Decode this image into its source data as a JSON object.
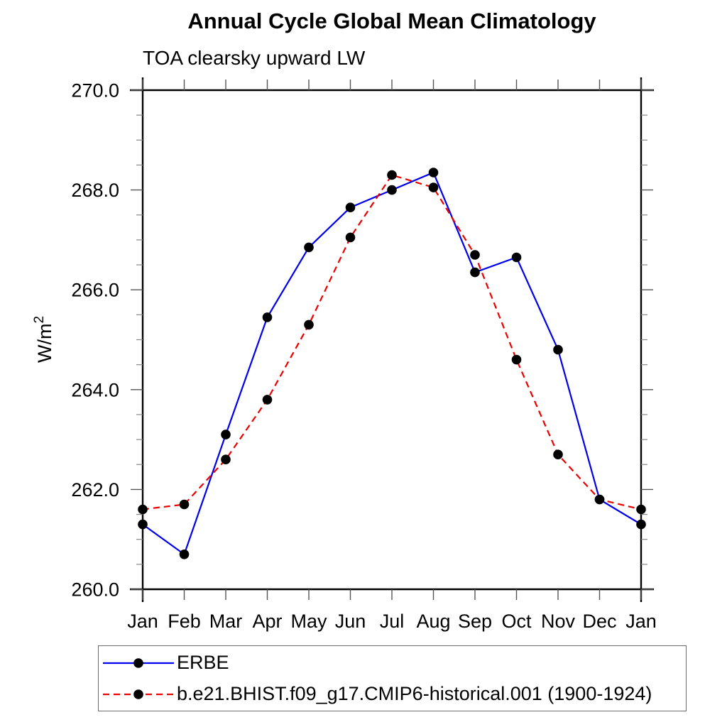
{
  "chart_data": {
    "type": "line",
    "title": "Annual Cycle Global Mean Climatology",
    "subtitle": "TOA clearsky upward LW",
    "ylabel": {
      "base": "W/m",
      "exponent": "2"
    },
    "ylim": [
      260.0,
      270.0
    ],
    "y_major_tick_step": 2.0,
    "y_minor_tick_step": 0.5,
    "y_tick_labels": [
      "260.0",
      "262.0",
      "264.0",
      "266.0",
      "268.0",
      "270.0"
    ],
    "x": [
      "Jan",
      "Feb",
      "Mar",
      "Apr",
      "May",
      "Jun",
      "Jul",
      "Aug",
      "Sep",
      "Oct",
      "Nov",
      "Dec",
      "Jan"
    ],
    "grid": false,
    "legend_position": "bottom-left",
    "series": [
      {
        "name": "ERBE",
        "color": "#0000ee",
        "line_style": "solid",
        "marker": "filled-circle",
        "marker_color": "#000000",
        "values": [
          261.3,
          260.7,
          263.1,
          265.45,
          266.85,
          267.65,
          268.0,
          268.35,
          266.35,
          266.65,
          264.8,
          261.8,
          261.3
        ]
      },
      {
        "name": "b.e21.BHIST.f09_g17.CMIP6-historical.001 (1900-1924)",
        "color": "#ee0000",
        "line_style": "dashed",
        "marker": "filled-circle",
        "marker_color": "#000000",
        "values": [
          261.6,
          261.7,
          262.6,
          263.8,
          265.3,
          267.05,
          268.3,
          268.05,
          266.7,
          264.6,
          262.7,
          261.8,
          261.6
        ]
      }
    ]
  }
}
